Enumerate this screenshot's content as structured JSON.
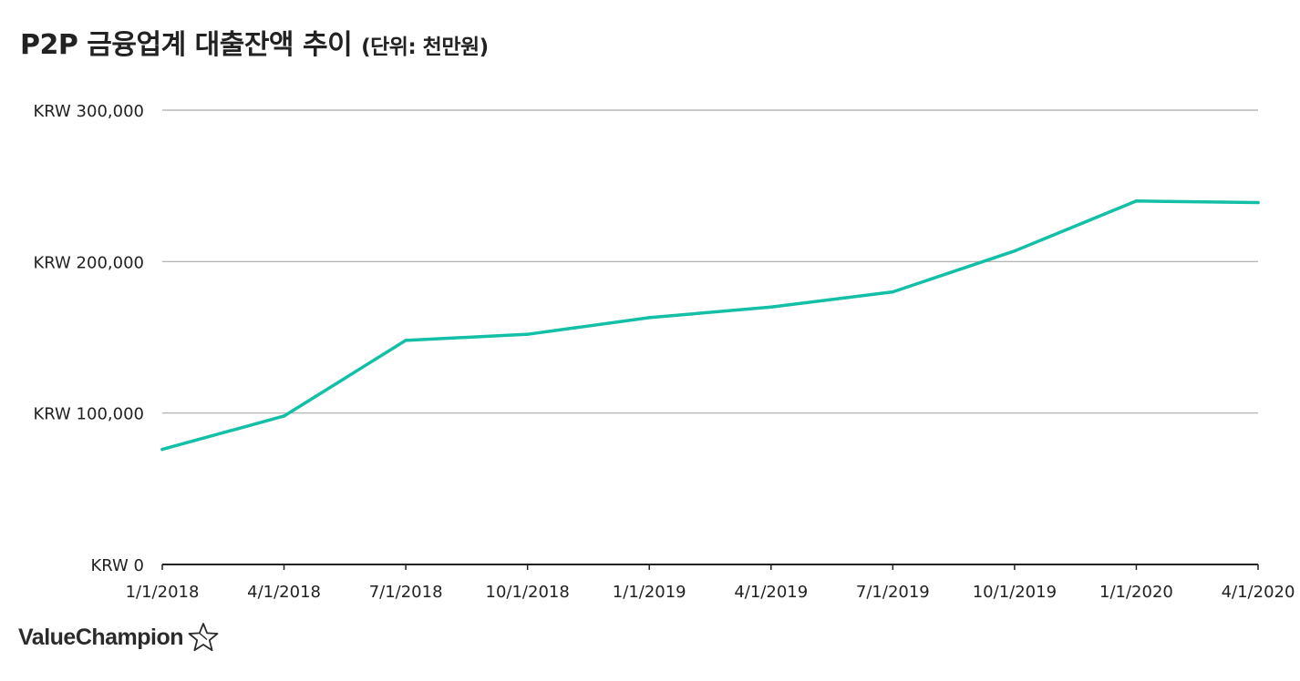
{
  "chart_title": {
    "main": "P2P 금융업계 대출잔액 추이",
    "unit": "(단위: 천만원)"
  },
  "brand": {
    "name": "ValueChampion",
    "icon": "star-outline-icon"
  },
  "colors": {
    "line": "#13bfa6",
    "grid": "#aaaaaa",
    "axis": "#222222",
    "text": "#222222"
  },
  "chart_data": {
    "type": "line",
    "title": "P2P 금융업계 대출잔액 추이 (단위: 천만원)",
    "xlabel": "",
    "ylabel": "",
    "x": [
      "1/1/2018",
      "4/1/2018",
      "7/1/2018",
      "10/1/2018",
      "1/1/2019",
      "4/1/2019",
      "7/1/2019",
      "10/1/2019",
      "1/1/2020",
      "4/1/2020"
    ],
    "values": [
      76000,
      98000,
      148000,
      152000,
      163000,
      170000,
      180000,
      207000,
      240000,
      239000
    ],
    "ylim": [
      0,
      300000
    ],
    "yticks": [
      0,
      100000,
      200000,
      300000
    ],
    "ytick_labels": [
      "KRW 0",
      "KRW 100,000",
      "KRW 200,000",
      "KRW 300,000"
    ],
    "grid": true,
    "legend": "none"
  }
}
